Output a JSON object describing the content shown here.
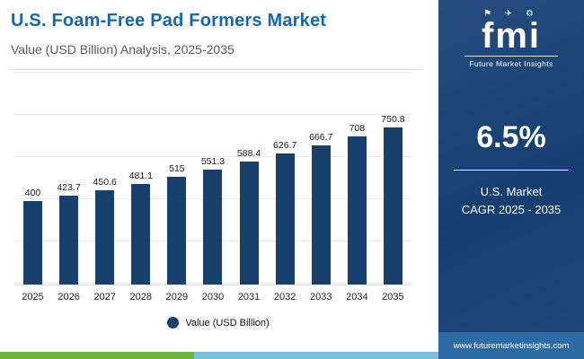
{
  "header": {
    "title": "U.S. Foam-Free Pad Formers Market",
    "subtitle": "Value (USD Billion) Analysis, 2025-2035"
  },
  "chart_data": {
    "type": "bar",
    "categories": [
      "2025",
      "2026",
      "2027",
      "2028",
      "2029",
      "2030",
      "2031",
      "2032",
      "2033",
      "2034",
      "2035"
    ],
    "values": [
      400,
      423.7,
      450.6,
      481.1,
      515,
      551.3,
      588.4,
      626.7,
      666.7,
      708,
      750.8
    ],
    "title": "U.S. Foam-Free Pad Formers Market",
    "xlabel": "",
    "ylabel": "Value (USD Billion)",
    "ylim": [
      0,
      800
    ],
    "grid": true,
    "legend_position": "bottom",
    "legend": "Value (USD Billion)"
  },
  "legend": {
    "label": "Value (USD Billion)"
  },
  "panel": {
    "logo_icons": "⚑ ✈ ⚙",
    "logo_word": "fmi",
    "logo_sub": "Future Market Insights",
    "cagr_value": "6.5%",
    "cagr_line1": "U.S. Market",
    "cagr_line2": "CAGR 2025 - 2035",
    "website": "www.futuremarketinsights.com"
  },
  "colors": {
    "title": "#1268b3",
    "bar": "#17406d",
    "panel": "#153f72",
    "footer": "#2e6ba6",
    "green_strip": "#6cb33f",
    "lightblue_strip": "#7fbfdf"
  }
}
